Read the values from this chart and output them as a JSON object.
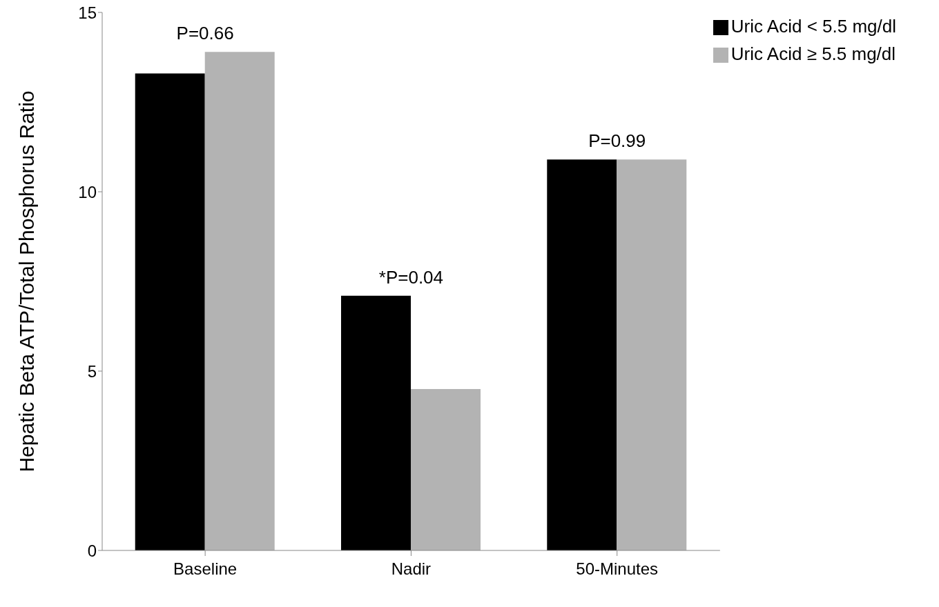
{
  "chart_data": {
    "type": "bar",
    "ylabel": "Hepatic Beta ATP/Total Phosphorus Ratio",
    "categories": [
      "Baseline",
      "Nadir",
      "50-Minutes"
    ],
    "series": [
      {
        "name": "Uric Acid < 5.5 mg/dl",
        "color": "#000000",
        "values": [
          13.3,
          7.1,
          10.9
        ]
      },
      {
        "name": "Uric Acid ≥ 5.5 mg/dl",
        "color": "#b3b3b3",
        "values": [
          13.9,
          4.5,
          10.9
        ]
      }
    ],
    "ylim": [
      0,
      15
    ],
    "yticks": [
      0,
      5,
      10,
      15
    ],
    "grid": false,
    "legend": "top right",
    "annotations": [
      {
        "text": "P=0.66",
        "x": "Baseline",
        "y": 13.9
      },
      {
        "text": "*P=0.04",
        "x": "Nadir",
        "y": 7.1
      },
      {
        "text": "P=0.99",
        "x": "50-Minutes",
        "y": 10.9
      }
    ]
  }
}
